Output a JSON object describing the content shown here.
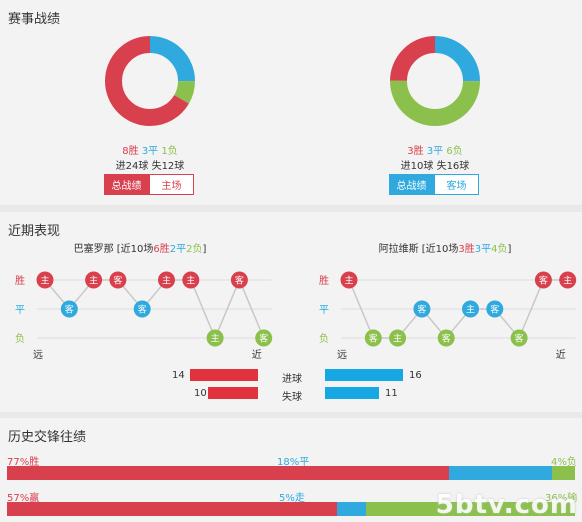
{
  "record": {
    "title": "赛事战绩",
    "left": {
      "win": "8胜",
      "draw": "3平",
      "loss": "1负",
      "goals_line": "进24球 失12球",
      "tab_active": "总战绩",
      "tab_other": "主场",
      "chart": {
        "win": 8,
        "draw": 3,
        "loss": 1
      }
    },
    "right": {
      "win": "3胜",
      "draw": "3平",
      "loss": "6负",
      "goals_line": "进10球 失16球",
      "tab_active": "总战绩",
      "tab_other": "客场",
      "chart": {
        "win": 3,
        "draw": 3,
        "loss": 6
      }
    }
  },
  "recent": {
    "title": "近期表现",
    "left": {
      "team": "巴塞罗那",
      "prefix": " [近10场",
      "w": "6胜",
      "d": "2平",
      "l": "2负",
      "suffix": "]",
      "results": [
        "W",
        "D",
        "W",
        "W",
        "D",
        "W",
        "W",
        "L",
        "W",
        "L"
      ],
      "venues": [
        "主",
        "客",
        "主",
        "客",
        "客",
        "主",
        "主",
        "主",
        "客",
        "客"
      ]
    },
    "right": {
      "team": "阿拉维斯",
      "prefix": " [近10场",
      "w": "3胜",
      "d": "3平",
      "l": "4负",
      "suffix": "]",
      "results": [
        "W",
        "L",
        "L",
        "D",
        "L",
        "D",
        "D",
        "L",
        "W",
        "W"
      ],
      "venues": [
        "主",
        "客",
        "主",
        "客",
        "客",
        "主",
        "客",
        "客",
        "客",
        "主"
      ]
    },
    "axis": {
      "win": "胜",
      "draw": "平",
      "loss": "负",
      "far": "远",
      "near": "近"
    },
    "stats": {
      "goals_label": "进球",
      "conceded_label": "失球",
      "home_goals": 14,
      "away_goals": 16,
      "home_conceded": 10,
      "away_conceded": 11
    }
  },
  "h2h": {
    "title": "历史交锋往绩",
    "row1": {
      "left": "77%胜",
      "mid": "18%平",
      "right": "4%负",
      "values": [
        77,
        18,
        4
      ]
    },
    "row2": {
      "left": "57%赢",
      "mid": "5%走",
      "right": "36%输",
      "values": [
        57,
        5,
        36
      ]
    }
  },
  "colors": {
    "win": "#d9404e",
    "draw": "#2fa9de",
    "loss": "#8cc04c",
    "bar_home": "#e1333d",
    "bar_away": "#17a8e3"
  },
  "watermark": "5btv.com"
}
